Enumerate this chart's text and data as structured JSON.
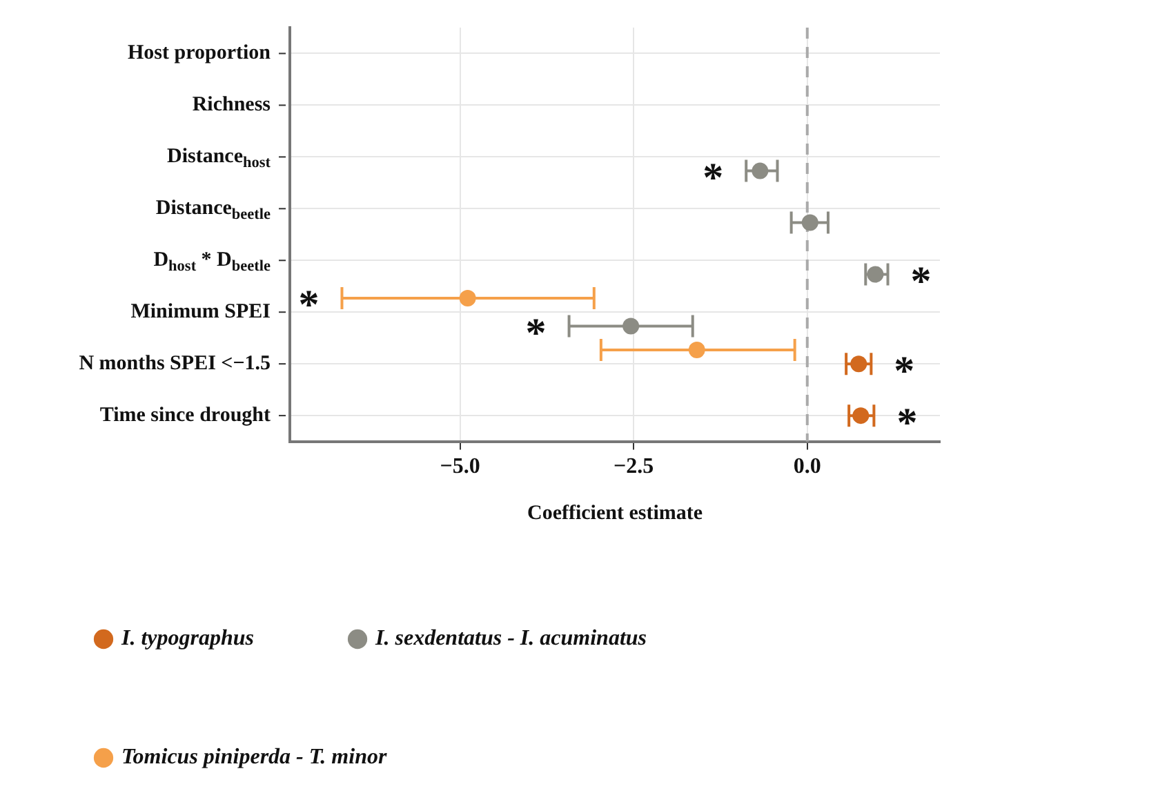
{
  "chart_data": {
    "type": "scatter",
    "xlabel": "Coefficient estimate",
    "categories": [
      "Host proportion",
      "Richness",
      "Distance$_{host}$",
      "Distance$_{beetle}$",
      "D$_{host}$ * D$_{beetle}$",
      "Minimum SPEI",
      "N months SPEI <−1.5",
      "Time since drought"
    ],
    "orientation": "horizontal",
    "series": [
      {
        "name": "I. typographus",
        "color": "#d2691e",
        "values": [
          null,
          null,
          null,
          null,
          null,
          null,
          0.74,
          0.77
        ],
        "errors": [
          null,
          null,
          null,
          null,
          null,
          null,
          [
            0.56,
            0.92
          ],
          [
            0.6,
            0.96
          ]
        ]
      },
      {
        "name": "I. sexdentatus - I. acuminatus",
        "color": "#8c8c84",
        "values": [
          null,
          null,
          -0.68,
          0.04,
          0.98,
          -2.54,
          null,
          null
        ],
        "errors": [
          null,
          null,
          [
            -0.88,
            -0.43
          ],
          [
            -0.23,
            0.3
          ],
          [
            0.84,
            1.16
          ],
          [
            -3.43,
            -1.65
          ],
          null,
          null
        ]
      },
      {
        "name": "Tomicus piniperda - T. minor",
        "color": "#f5a04a",
        "values": [
          null,
          null,
          null,
          null,
          null,
          -4.89,
          -1.59,
          null
        ],
        "errors": [
          null,
          null,
          null,
          null,
          null,
          [
            -6.7,
            -3.07
          ],
          [
            -2.97,
            -0.18
          ],
          null
        ]
      }
    ],
    "xlim": [
      -7.45,
      1.91
    ],
    "xticks": [
      {
        "value": -5,
        "label": "−5.0"
      },
      {
        "value": -2.5,
        "label": "−2.5"
      },
      {
        "value": 0,
        "label": "0.0"
      }
    ],
    "ref_lines": [
      {
        "axis": "x",
        "value": 0,
        "color": "#aaaaaa",
        "line_style": "dashed"
      }
    ],
    "annotations": [
      {
        "text": "*",
        "x": -0.88,
        "y": "Distance$_{host}$"
      },
      {
        "text": "*",
        "x": 1.16,
        "y": "D$_{host}$ * D$_{beetle}$"
      },
      {
        "text": "*",
        "x": -6.7,
        "y": "Minimum SPEI"
      },
      {
        "text": "*",
        "x": -3.43,
        "y": "Minimum SPEI"
      },
      {
        "text": "*",
        "x": 0.92,
        "y": "N months SPEI <−1.5"
      },
      {
        "text": "*",
        "x": 0.96,
        "y": "Time since drought"
      }
    ],
    "grid": true,
    "legend": "bottom",
    "marker": "circle"
  }
}
